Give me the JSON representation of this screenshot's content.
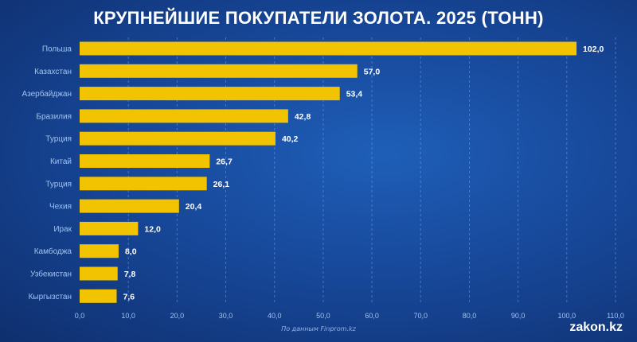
{
  "chart_data": {
    "type": "bar",
    "orientation": "horizontal",
    "title": "КРУПНЕЙШИЕ ПОКУПАТЕЛИ ЗОЛОТА. 2025 (ТОНН)",
    "categories": [
      "Польша",
      "Казахстан",
      "Азербайджан",
      "Бразилия",
      "Турция",
      "Китай",
      "Турция",
      "Чехия",
      "Ирак",
      "Камбоджа",
      "Узбекистан",
      "Кыргызстан"
    ],
    "values": [
      102.0,
      57.0,
      53.4,
      42.8,
      40.2,
      26.7,
      26.1,
      20.4,
      12.0,
      8.0,
      7.8,
      7.6
    ],
    "value_labels": [
      "102,0",
      "57,0",
      "53,4",
      "42,8",
      "40,2",
      "26,7",
      "26,1",
      "20,4",
      "12,0",
      "8,0",
      "7,8",
      "7,6"
    ],
    "x_ticks": [
      0,
      10,
      20,
      30,
      40,
      50,
      60,
      70,
      80,
      90,
      100,
      110
    ],
    "x_tick_labels": [
      "0,0",
      "10,0",
      "20,0",
      "30,0",
      "40,0",
      "50,0",
      "60,0",
      "70,0",
      "80,0",
      "90,0",
      "100,0",
      "110,0"
    ],
    "xlim": [
      0,
      110
    ],
    "xlabel": "",
    "ylabel": "",
    "grid": "vertical-dashed",
    "bar_color": "#f2c300",
    "label_color": "#ffffff",
    "tick_color": "#9fc3f2"
  },
  "footer": {
    "source": "По данным Finprom.kz",
    "logo": "zakon.kz"
  }
}
